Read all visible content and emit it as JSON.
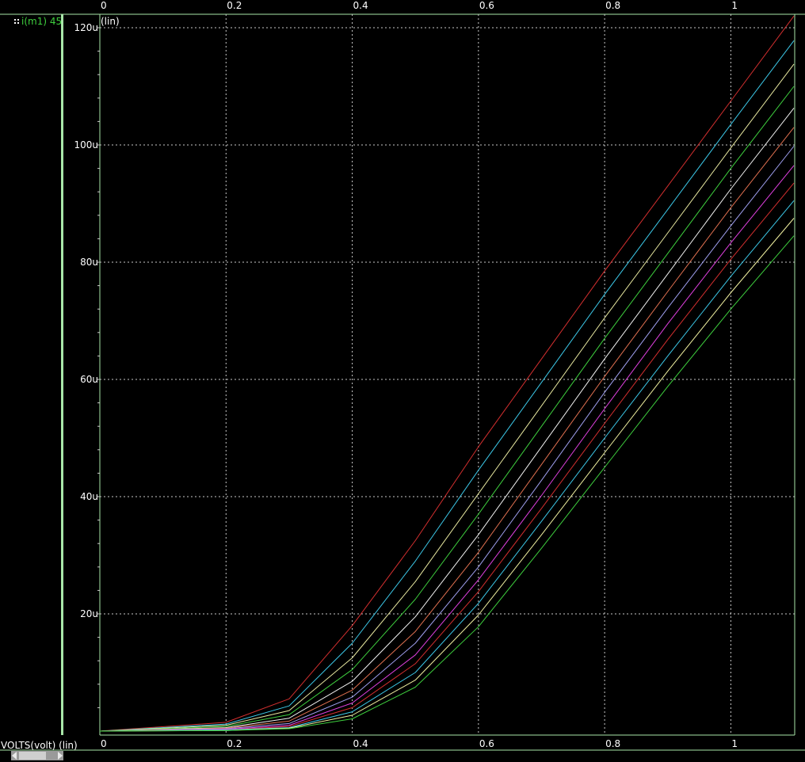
{
  "legend": {
    "label": "i(m1) 45"
  },
  "y_scale_note": "(lin)",
  "x_axis_label": "VOLTS(volt) (lin)",
  "colors": {
    "background": "#000000",
    "frame": "#a8e6a8",
    "grid": "#c8c8c8",
    "legend_text": "#3ecf3e",
    "series": [
      "#d32f2f",
      "#3cc8e8",
      "#e8e8a0",
      "#3ecf3e",
      "#f0f0f0",
      "#e07050",
      "#a0a0f0",
      "#e040e0",
      "#d32f2f",
      "#3cc8e8",
      "#f0f0a0",
      "#3ecf3e"
    ]
  },
  "chart_data": {
    "type": "line",
    "x_ticks": [
      "0",
      "0.2",
      "0.4",
      "0.6",
      "0.8",
      "1"
    ],
    "y_ticks": [
      "20u",
      "40u",
      "60u",
      "80u",
      "100u",
      "120u"
    ],
    "xlim": [
      0,
      1.1
    ],
    "ylim": [
      0,
      0.00012
    ],
    "grid": true,
    "series": [
      {
        "x": [
          0,
          0.2,
          0.3,
          0.4,
          0.5,
          0.6,
          0.7,
          0.8,
          0.9,
          1.0,
          1.1
        ],
        "y": [
          0,
          1.5e-06,
          5.5e-06,
          1.8e-05,
          3.25e-05,
          4.85e-05,
          6.35e-05,
          7.85e-05,
          9.3e-05,
          0.0001075,
          0.000122
        ]
      },
      {
        "x": [
          0,
          0.2,
          0.3,
          0.4,
          0.5,
          0.6,
          0.7,
          0.8,
          0.9,
          1.0,
          1.1
        ],
        "y": [
          0,
          1.2e-06,
          4.3e-06,
          1.5e-05,
          2.9e-05,
          4.45e-05,
          5.95e-05,
          7.45e-05,
          8.9e-05,
          0.0001035,
          0.0001178
        ]
      },
      {
        "x": [
          0,
          0.2,
          0.3,
          0.4,
          0.5,
          0.6,
          0.7,
          0.8,
          0.9,
          1.0,
          1.1
        ],
        "y": [
          0,
          1e-06,
          3.5e-06,
          1.25e-05,
          2.55e-05,
          4.05e-05,
          5.55e-05,
          7.05e-05,
          8.5e-05,
          9.95e-05,
          0.0001138
        ]
      },
      {
        "x": [
          0,
          0.2,
          0.3,
          0.4,
          0.5,
          0.6,
          0.7,
          0.8,
          0.9,
          1.0,
          1.1
        ],
        "y": [
          0,
          8e-07,
          2.8e-06,
          1.05e-05,
          2.25e-05,
          3.7e-05,
          5.2e-05,
          6.7e-05,
          8.15e-05,
          9.6e-05,
          0.00011
        ]
      },
      {
        "x": [
          0,
          0.2,
          0.3,
          0.4,
          0.5,
          0.6,
          0.7,
          0.8,
          0.9,
          1.0,
          1.1
        ],
        "y": [
          0,
          6e-07,
          2.2e-06,
          8.5e-06,
          1.95e-05,
          3.35e-05,
          4.85e-05,
          6.35e-05,
          7.8e-05,
          9.25e-05,
          0.0001063
        ]
      },
      {
        "x": [
          0,
          0.2,
          0.3,
          0.4,
          0.5,
          0.6,
          0.7,
          0.8,
          0.9,
          1.0,
          1.1
        ],
        "y": [
          0,
          5e-07,
          1.7e-06,
          7e-06,
          1.7e-05,
          3.05e-05,
          4.55e-05,
          6.05e-05,
          7.5e-05,
          8.93e-05,
          0.000103
        ]
      },
      {
        "x": [
          0,
          0.2,
          0.3,
          0.4,
          0.5,
          0.6,
          0.7,
          0.8,
          0.9,
          1.0,
          1.1
        ],
        "y": [
          0,
          4e-07,
          1.3e-06,
          5.8e-06,
          1.5e-05,
          2.8e-05,
          4.28e-05,
          5.78e-05,
          7.22e-05,
          8.62e-05,
          9.98e-05
        ]
      },
      {
        "x": [
          0,
          0.2,
          0.3,
          0.4,
          0.5,
          0.6,
          0.7,
          0.8,
          0.9,
          1.0,
          1.1
        ],
        "y": [
          0,
          3e-07,
          1e-06,
          4.8e-06,
          1.3e-05,
          2.58e-05,
          4.02e-05,
          5.5e-05,
          6.95e-05,
          8.33e-05,
          9.65e-05
        ]
      },
      {
        "x": [
          0,
          0.2,
          0.3,
          0.4,
          0.5,
          0.6,
          0.7,
          0.8,
          0.9,
          1.0,
          1.1
        ],
        "y": [
          0,
          2e-07,
          8e-07,
          4e-06,
          1.15e-05,
          2.38e-05,
          3.8e-05,
          5.25e-05,
          6.68e-05,
          8.05e-05,
          9.35e-05
        ]
      },
      {
        "x": [
          0,
          0.2,
          0.3,
          0.4,
          0.5,
          0.6,
          0.7,
          0.8,
          0.9,
          1.0,
          1.1
        ],
        "y": [
          0,
          2e-07,
          6e-07,
          3.3e-06,
          1e-05,
          2.18e-05,
          3.58e-05,
          5e-05,
          6.4e-05,
          7.76e-05,
          9.05e-05
        ]
      },
      {
        "x": [
          0,
          0.2,
          0.3,
          0.4,
          0.5,
          0.6,
          0.7,
          0.8,
          0.9,
          1.0,
          1.1
        ],
        "y": [
          0,
          1e-07,
          5e-07,
          2.7e-06,
          8.7e-06,
          1.98e-05,
          3.35e-05,
          4.75e-05,
          6.14e-05,
          7.48e-05,
          8.75e-05
        ]
      },
      {
        "x": [
          0,
          0.2,
          0.3,
          0.4,
          0.5,
          0.6,
          0.7,
          0.8,
          0.9,
          1.0,
          1.1
        ],
        "y": [
          0,
          1e-07,
          4e-07,
          2.1e-06,
          7.5e-06,
          1.78e-05,
          3.12e-05,
          4.5e-05,
          5.88e-05,
          7.2e-05,
          8.45e-05
        ]
      }
    ]
  }
}
